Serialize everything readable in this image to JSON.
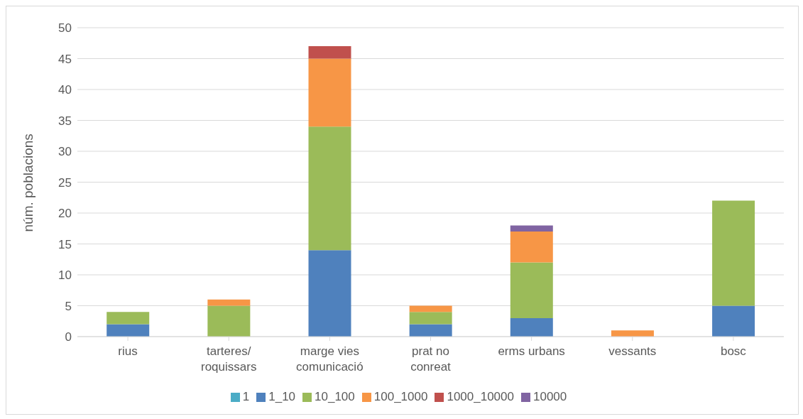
{
  "chart_data": {
    "type": "bar",
    "stacked": true,
    "ylabel": "núm. poblacions",
    "categories": [
      "rius",
      "tarteres/\nroquissars",
      "marge vies\ncomunicació",
      "prat no\nconreat",
      "erms urbans",
      "vessants",
      "bosc"
    ],
    "series": [
      {
        "name": "1",
        "color": "#4bacc6",
        "values": [
          0,
          0,
          0,
          0,
          0,
          0,
          0
        ]
      },
      {
        "name": "1_10",
        "color": "#4f81bd",
        "values": [
          2,
          0,
          14,
          2,
          3,
          0,
          5
        ]
      },
      {
        "name": "10_100",
        "color": "#9bbb59",
        "values": [
          2,
          5,
          20,
          2,
          9,
          0,
          17
        ]
      },
      {
        "name": "100_1000",
        "color": "#f79646",
        "values": [
          0,
          1,
          11,
          1,
          5,
          1,
          0
        ]
      },
      {
        "name": "1000_10000",
        "color": "#c0504d",
        "values": [
          0,
          0,
          2,
          0,
          0,
          0,
          0
        ]
      },
      {
        "name": "10000",
        "color": "#8064a2",
        "values": [
          0,
          0,
          0,
          0,
          1,
          0,
          0
        ]
      }
    ],
    "ylim": [
      0,
      50
    ],
    "yticks": [
      0,
      5,
      10,
      15,
      20,
      25,
      30,
      35,
      40,
      45,
      50
    ],
    "grid": "y",
    "legend": "bottom"
  }
}
